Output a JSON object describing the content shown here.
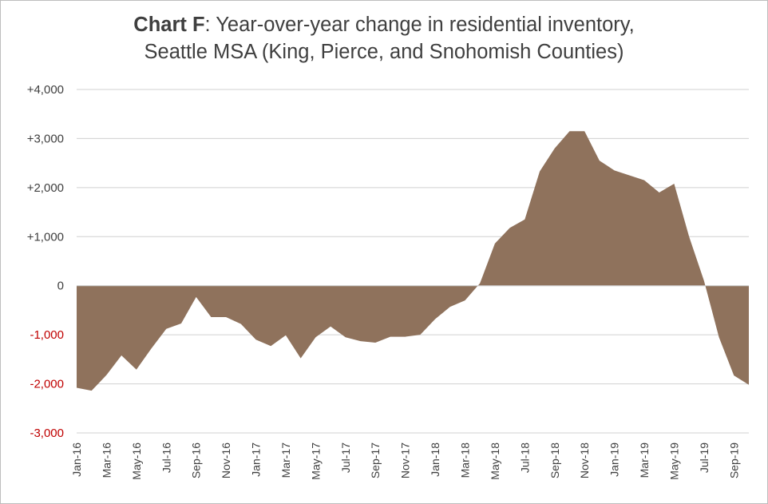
{
  "title": {
    "bold": "Chart F",
    "rest_line1": ": Year-over-year change in residential inventory,",
    "line2": "Seattle MSA (King, Pierce, and Snohomish Counties)"
  },
  "colors": {
    "area": "#8f725c",
    "grid": "#d0d0d0",
    "negative_tick": "#c00000",
    "text": "#3f3f3f"
  },
  "chart_data": {
    "type": "area",
    "title": "Chart F: Year-over-year change in residential inventory, Seattle MSA (King, Pierce, and Snohomish Counties)",
    "xlabel": "",
    "ylabel": "",
    "ylim": [
      -3000,
      4000
    ],
    "grid": true,
    "legend": "none",
    "y_ticks": [
      {
        "value": 4000,
        "label": "+4,000"
      },
      {
        "value": 3000,
        "label": "+3,000"
      },
      {
        "value": 2000,
        "label": "+2,000"
      },
      {
        "value": 1000,
        "label": "+1,000"
      },
      {
        "value": 0,
        "label": "0"
      },
      {
        "value": -1000,
        "label": "-1,000"
      },
      {
        "value": -2000,
        "label": "-2,000"
      },
      {
        "value": -3000,
        "label": "-3,000"
      }
    ],
    "x_tick_labels": [
      "Jan-16",
      "Mar-16",
      "May-16",
      "Jul-16",
      "Sep-16",
      "Nov-16",
      "Jan-17",
      "Mar-17",
      "May-17",
      "Jul-17",
      "Sep-17",
      "Nov-17",
      "Jan-18",
      "Mar-18",
      "May-18",
      "Jul-18",
      "Sep-18",
      "Nov-18",
      "Jan-19",
      "Mar-19",
      "May-19",
      "Jul-19",
      "Sep-19"
    ],
    "categories": [
      "Jan-16",
      "Feb-16",
      "Mar-16",
      "Apr-16",
      "May-16",
      "Jun-16",
      "Jul-16",
      "Aug-16",
      "Sep-16",
      "Oct-16",
      "Nov-16",
      "Dec-16",
      "Jan-17",
      "Feb-17",
      "Mar-17",
      "Apr-17",
      "May-17",
      "Jun-17",
      "Jul-17",
      "Aug-17",
      "Sep-17",
      "Oct-17",
      "Nov-17",
      "Dec-17",
      "Jan-18",
      "Feb-18",
      "Mar-18",
      "Apr-18",
      "May-18",
      "Jun-18",
      "Jul-18",
      "Aug-18",
      "Sep-18",
      "Oct-18",
      "Nov-18",
      "Dec-18",
      "Jan-19",
      "Feb-19",
      "Mar-19",
      "Apr-19",
      "May-19",
      "Jun-19",
      "Jul-19",
      "Aug-19",
      "Sep-19",
      "Oct-19"
    ],
    "values": [
      -2080,
      -2140,
      -1820,
      -1420,
      -1710,
      -1280,
      -880,
      -770,
      -230,
      -640,
      -640,
      -780,
      -1100,
      -1230,
      -1010,
      -1480,
      -1050,
      -830,
      -1050,
      -1130,
      -1160,
      -1040,
      -1040,
      -1000,
      -680,
      -430,
      -300,
      50,
      860,
      1180,
      1350,
      2330,
      2800,
      3150,
      3150,
      2550,
      2350,
      2250,
      2150,
      1900,
      2080,
      1000,
      100,
      -1050,
      -1830,
      -2020
    ]
  }
}
